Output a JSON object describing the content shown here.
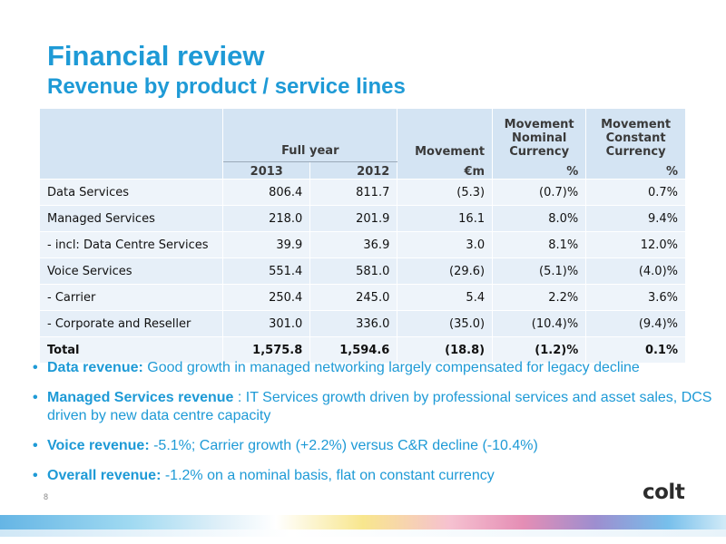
{
  "slide": {
    "title": "Financial review",
    "subtitle": "Revenue by product / service lines",
    "page_number": "8",
    "logo_text": "colt"
  },
  "table": {
    "header": {
      "full_year": "Full year",
      "year_2013": "2013",
      "year_2012": "2012",
      "movement": "Movement",
      "movement_unit": "€m",
      "movement_nominal": "Movement Nominal Currency",
      "movement_nominal_unit": "%",
      "movement_constant": "Movement Constant Currency",
      "movement_constant_unit": "%"
    },
    "rows": [
      {
        "label": "Data Services",
        "y2013": "806.4",
        "y2012": "811.7",
        "movement": "(5.3)",
        "nominal": "(0.7)%",
        "constant": "0.7%"
      },
      {
        "label": "Managed Services",
        "y2013": "218.0",
        "y2012": "201.9",
        "movement": "16.1",
        "nominal": "8.0%",
        "constant": "9.4%"
      },
      {
        "label": "- incl: Data Centre Services",
        "y2013": "39.9",
        "y2012": "36.9",
        "movement": "3.0",
        "nominal": "8.1%",
        "constant": "12.0%"
      },
      {
        "label": "Voice Services",
        "y2013": "551.4",
        "y2012": "581.0",
        "movement": "(29.6)",
        "nominal": "(5.1)%",
        "constant": "(4.0)%"
      },
      {
        "label": "- Carrier",
        "y2013": "250.4",
        "y2012": "245.0",
        "movement": "5.4",
        "nominal": "2.2%",
        "constant": "3.6%"
      },
      {
        "label": "- Corporate and Reseller",
        "y2013": "301.0",
        "y2012": "336.0",
        "movement": "(35.0)",
        "nominal": "(10.4)%",
        "constant": "(9.4)%"
      },
      {
        "label": "Total",
        "y2013": "1,575.8",
        "y2012": "1,594.6",
        "movement": "(18.8)",
        "nominal": "(1.2)%",
        "constant": "0.1%"
      }
    ]
  },
  "bullets": [
    {
      "bold": "Data revenue:",
      "text": " Good growth in managed networking largely compensated for legacy decline"
    },
    {
      "bold": "Managed Services revenue",
      "text": " : IT Services growth driven by professional services and asset sales, DCS driven by new data centre capacity"
    },
    {
      "bold": "Voice revenue:",
      "text": " -5.1%; Carrier growth (+2.2%) versus C&R decline (-10.4%)"
    },
    {
      "bold": "Overall revenue:",
      "text": " -1.2% on a nominal basis, flat on constant currency"
    }
  ],
  "colors": {
    "title_blue": "#1e9ad6",
    "table_header_bg": "#d4e4f3",
    "table_row_bg": "#eef4fa"
  }
}
